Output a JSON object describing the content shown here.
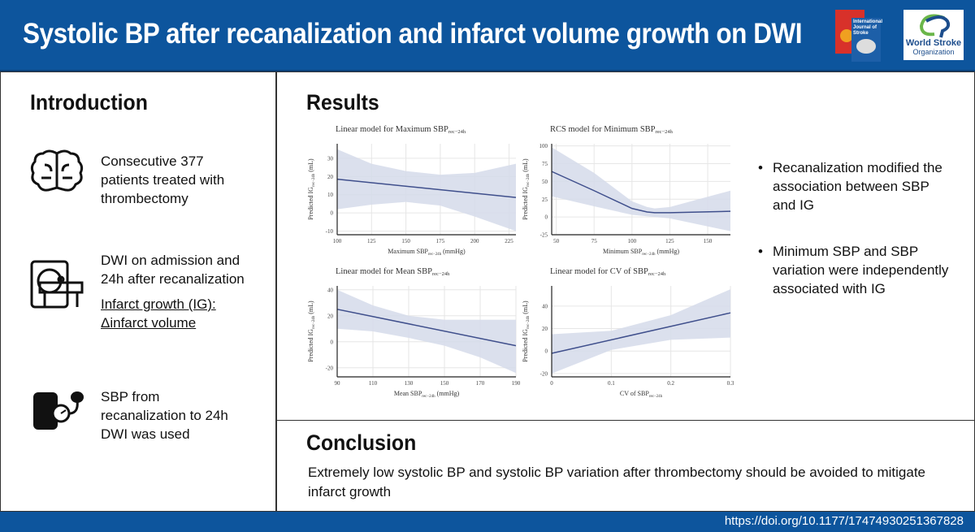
{
  "header": {
    "title": "Systolic BP after recanalization and infarct volume growth on DWI",
    "logo_text": [
      "World Stroke",
      "Organization"
    ],
    "journal_cover": "International Journal of Stroke"
  },
  "intro": {
    "heading": "Introduction",
    "items": [
      {
        "icon": "brain-icon",
        "text": "Consecutive 377 patients treated with thrombectomy"
      },
      {
        "icon": "mri-scanner-icon",
        "text": "DWI on admission and 24h after recanalization",
        "underlined": "Infarct growth (IG): Δinfarct volume"
      },
      {
        "icon": "blood-pressure-cuff-icon",
        "text": "SBP from recanalization to 24h DWI was used"
      }
    ]
  },
  "results": {
    "heading": "Results",
    "bullets": [
      "Recanalization modified the association between SBP and IG",
      "Minimum SBP and SBP variation were independently associated with IG"
    ]
  },
  "conclusion": {
    "heading": "Conclusion",
    "text": "Extremely low systolic BP and systolic BP variation after thrombectomy should be avoided to mitigate infarct growth"
  },
  "footer": {
    "doi": "https://doi.org/10.1177/17474930251367828"
  },
  "colors": {
    "header": "#0d559d",
    "line": "#3f4f8c",
    "band": "#d5dbea"
  },
  "chart_data": [
    {
      "type": "line",
      "title": "Linear model for Maximum SBP",
      "title_sub": "rec−24h",
      "xlabel": "Maximum SBP",
      "xlabel_sub": "rec−24h",
      "xlabel_unit": " (mmHg)",
      "ylabel": "Predicted IG",
      "ylabel_sub": "rec−24h",
      "ylabel_unit": " (mL)",
      "xlim": [
        100,
        230
      ],
      "ylim": [
        -12,
        38
      ],
      "xticks": [
        100,
        125,
        150,
        175,
        200,
        225
      ],
      "yticks": [
        -10,
        0,
        10,
        20,
        30
      ],
      "grid": true,
      "x": [
        100,
        230
      ],
      "y": [
        18.5,
        8.5
      ],
      "ci_x": [
        100,
        125,
        150,
        175,
        200,
        230
      ],
      "ci_upper": [
        35,
        27,
        23,
        21,
        22,
        27
      ],
      "ci_lower": [
        2,
        4.5,
        6,
        4,
        -2,
        -10
      ]
    },
    {
      "type": "line",
      "title": "RCS model for Minimum SBP",
      "title_sub": "rec−24h",
      "xlabel": "Minimum SBP",
      "xlabel_sub": "rec−24h",
      "xlabel_unit": " (mmHg)",
      "ylabel": "Predicted IG",
      "ylabel_sub": "rec−24h",
      "ylabel_unit": " (mL)",
      "xlim": [
        47,
        165
      ],
      "ylim": [
        -25,
        103
      ],
      "xticks": [
        50,
        75,
        100,
        125,
        150
      ],
      "yticks": [
        -25,
        0,
        25,
        50,
        75,
        100
      ],
      "grid": true,
      "x": [
        47,
        75,
        100,
        110,
        115,
        125,
        165
      ],
      "y": [
        64,
        37,
        12,
        7,
        6,
        6,
        8
      ],
      "ci_x": [
        47,
        75,
        100,
        110,
        115,
        125,
        165
      ],
      "ci_upper": [
        98,
        62,
        22,
        14,
        12,
        14,
        37
      ],
      "ci_lower": [
        29,
        15,
        3,
        1,
        0,
        -2,
        -20
      ]
    },
    {
      "type": "line",
      "title": "Linear model for Mean SBP",
      "title_sub": "rec−24h",
      "xlabel": "Mean SBP",
      "xlabel_sub": "rec−24h",
      "xlabel_unit": " (mmHg)",
      "ylabel": "Predicted IG",
      "ylabel_sub": "rec−24h",
      "ylabel_unit": " (mL)",
      "xlim": [
        90,
        190
      ],
      "ylim": [
        -27,
        43
      ],
      "xticks": [
        90,
        110,
        130,
        150,
        170,
        190
      ],
      "yticks": [
        -20,
        0,
        20,
        40
      ],
      "grid": true,
      "x": [
        90,
        190
      ],
      "y": [
        25,
        -3
      ],
      "ci_x": [
        90,
        110,
        130,
        150,
        170,
        190
      ],
      "ci_upper": [
        40,
        28,
        20,
        17,
        17,
        17
      ],
      "ci_lower": [
        10,
        8,
        3,
        -3,
        -12,
        -24
      ]
    },
    {
      "type": "line",
      "title": "Linear model for CV of SBP",
      "title_sub": "rec−24h",
      "xlabel": "CV of SBP",
      "xlabel_sub": "rec−24h",
      "xlabel_unit": "",
      "ylabel": "Predicted IG",
      "ylabel_sub": "rec−24h",
      "ylabel_unit": " (mL)",
      "xlim": [
        0,
        0.3
      ],
      "ylim": [
        -23,
        58
      ],
      "xticks": [
        0,
        0.1,
        0.2,
        0.3
      ],
      "yticks": [
        -20,
        0,
        20,
        40
      ],
      "grid": true,
      "x": [
        0,
        0.3
      ],
      "y": [
        -2,
        34
      ],
      "ci_x": [
        0,
        0.1,
        0.2,
        0.3
      ],
      "ci_upper": [
        15,
        18,
        32,
        55
      ],
      "ci_lower": [
        -20,
        1,
        10,
        12
      ]
    }
  ]
}
